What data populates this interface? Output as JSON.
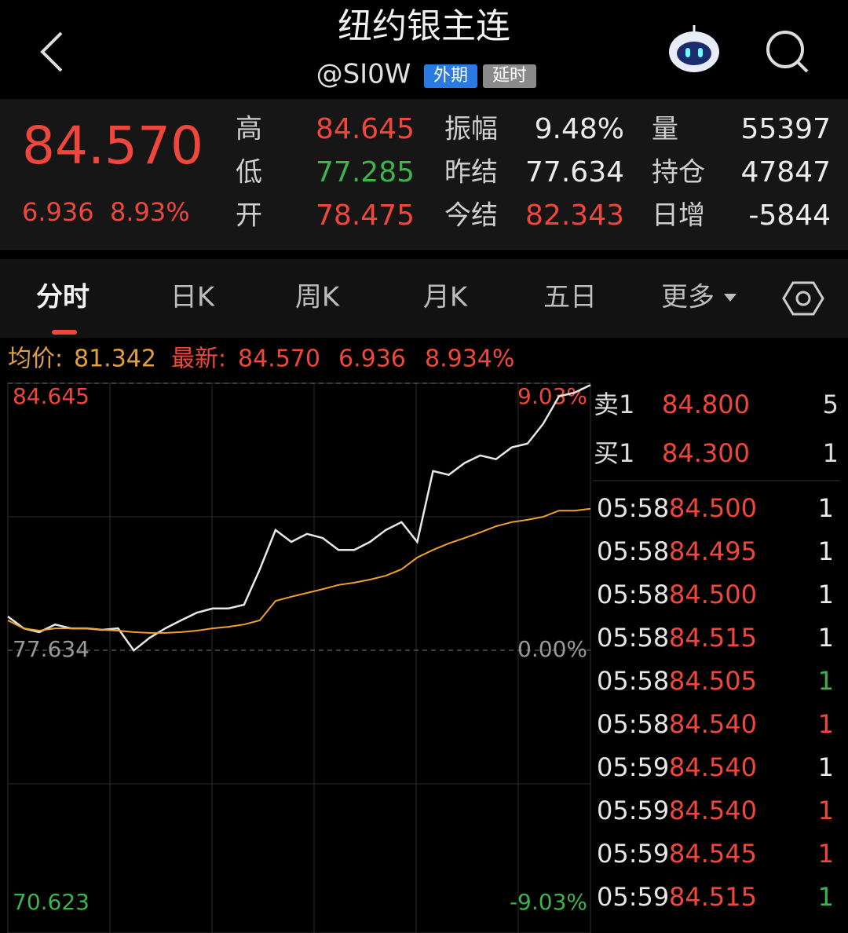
{
  "header": {
    "title": "纽约银主连",
    "symbol": "@SI0W",
    "tags": [
      "外期",
      "延时"
    ]
  },
  "quote": {
    "last": "84.570",
    "change": "6.936",
    "change_pct": "8.93%",
    "stats": [
      [
        {
          "label": "高",
          "value": "84.645",
          "color": "#f0463c"
        },
        {
          "label": "振幅",
          "value": "9.48%",
          "color": "#ececec"
        },
        {
          "label": "量",
          "value": "55397",
          "color": "#ececec"
        }
      ],
      [
        {
          "label": "低",
          "value": "77.285",
          "color": "#3cb44b"
        },
        {
          "label": "昨结",
          "value": "77.634",
          "color": "#ececec"
        },
        {
          "label": "持仓",
          "value": "47847",
          "color": "#ececec"
        }
      ],
      [
        {
          "label": "开",
          "value": "78.475",
          "color": "#f0463c"
        },
        {
          "label": "今结",
          "value": "82.343",
          "color": "#f0463c"
        },
        {
          "label": "日增",
          "value": "-5844",
          "color": "#ececec"
        }
      ]
    ]
  },
  "tabs": [
    "分时",
    "日K",
    "周K",
    "月K",
    "五日",
    "更多"
  ],
  "info_bar": {
    "avg_label": "均价:",
    "avg": "81.342",
    "latest_label": "最新:",
    "latest": "84.570",
    "change": "6.936",
    "change_pct": "8.934%"
  },
  "chart_data": {
    "type": "line",
    "ylim": [
      70.623,
      84.645
    ],
    "yticks": [
      70.623,
      77.634,
      84.645
    ],
    "y2lim": [
      -9.03,
      9.03
    ],
    "y2ticks": [
      {
        "value": -9.03,
        "label": "-9.03%"
      },
      {
        "value": 0,
        "label": "0.00%"
      },
      {
        "value": 9.03,
        "label": "9.03%"
      }
    ],
    "series": [
      {
        "name": "最新",
        "color": "#e8e8e8",
        "values": [
          78.52,
          78.21,
          78.11,
          78.31,
          78.21,
          78.21,
          78.17,
          78.21,
          77.63,
          77.96,
          78.21,
          78.42,
          78.62,
          78.73,
          78.73,
          78.83,
          79.76,
          80.79,
          80.48,
          80.69,
          80.58,
          80.27,
          80.27,
          80.48,
          80.79,
          81.0,
          80.48,
          82.34,
          82.24,
          82.55,
          82.75,
          82.65,
          82.96,
          83.06,
          83.58,
          84.3,
          84.4,
          84.6
        ]
      },
      {
        "name": "均价",
        "color": "#f0a030",
        "values": [
          78.42,
          78.21,
          78.15,
          78.21,
          78.21,
          78.21,
          78.17,
          78.15,
          78.11,
          78.09,
          78.09,
          78.11,
          78.15,
          78.21,
          78.25,
          78.31,
          78.42,
          78.93,
          79.04,
          79.14,
          79.24,
          79.35,
          79.41,
          79.49,
          79.59,
          79.76,
          80.07,
          80.27,
          80.44,
          80.58,
          80.73,
          80.89,
          81.0,
          81.06,
          81.14,
          81.3,
          81.3,
          81.35
        ]
      }
    ]
  },
  "order_book": [
    {
      "label": "卖1",
      "price": "84.800",
      "volume": "5"
    },
    {
      "label": "买1",
      "price": "84.300",
      "volume": "1"
    }
  ],
  "trades": [
    {
      "time": "05:58",
      "price": "84.500",
      "volume": "1",
      "color": "#ececec"
    },
    {
      "time": "05:58",
      "price": "84.495",
      "volume": "1",
      "color": "#ececec"
    },
    {
      "time": "05:58",
      "price": "84.500",
      "volume": "1",
      "color": "#ececec"
    },
    {
      "time": "05:58",
      "price": "84.515",
      "volume": "1",
      "color": "#ececec"
    },
    {
      "time": "05:58",
      "price": "84.505",
      "volume": "1",
      "color": "#3cb44b"
    },
    {
      "time": "05:58",
      "price": "84.540",
      "volume": "1",
      "color": "#f0463c"
    },
    {
      "time": "05:59",
      "price": "84.540",
      "volume": "1",
      "color": "#ececec"
    },
    {
      "time": "05:59",
      "price": "84.540",
      "volume": "1",
      "color": "#f0463c"
    },
    {
      "time": "05:59",
      "price": "84.545",
      "volume": "1",
      "color": "#f0463c"
    },
    {
      "time": "05:59",
      "price": "84.515",
      "volume": "1",
      "color": "#3cb44b"
    }
  ]
}
